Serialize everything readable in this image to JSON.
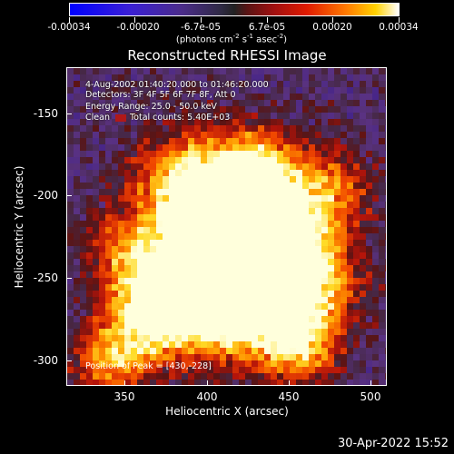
{
  "colorbar": {
    "tick_labels": [
      "-0.00034",
      "-0.00020",
      "-6.7e-05",
      "6.7e-05",
      "0.00020",
      "0.00034"
    ],
    "tick_values": [
      -0.00034,
      -0.0002,
      -6.7e-05,
      6.7e-05,
      0.0002,
      0.00034
    ],
    "units_prefix": "(photons cm",
    "units_exp1": "-2",
    "units_mid1": " s",
    "units_exp2": "-1",
    "units_mid2": " asec",
    "units_exp3": "-2",
    "units_suffix": ")"
  },
  "title": "Reconstructed RHESSI Image",
  "info": {
    "time_range": "4-Aug-2002 01:40:20.000 to 01:46:20.000",
    "detectors": "Detectors: 3F 4F 5F 6F 7F 8F, Att 0",
    "energy_range": "Energy Range: 25.0 - 50.0 keV",
    "algorithm": "Clean",
    "total_counts": "Total counts: 5.40E+03",
    "peak": "Position of Peak = [430,-228]"
  },
  "axes": {
    "x_label": "Heliocentric X (arcsec)",
    "y_label": "Heliocentric Y (arcsec)",
    "x_ticks": [
      "350",
      "400",
      "450",
      "500"
    ],
    "y_ticks": [
      "-150",
      "-200",
      "-250",
      "-300"
    ],
    "x_range": [
      315,
      510
    ],
    "y_range": [
      -307,
      -127
    ]
  },
  "timestamp": "30-Apr-2022 15:52",
  "colors": {
    "background": "#000000",
    "foreground": "#ffffff",
    "colormap": [
      "#0000ff",
      "#4b2c8a",
      "#222222",
      "#a01010",
      "#ff7a00",
      "#ffd200",
      "#ffffff"
    ]
  }
}
